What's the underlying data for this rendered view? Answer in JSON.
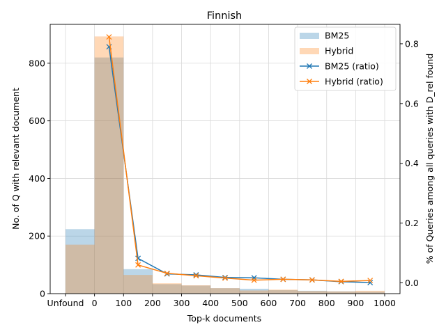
{
  "chart_data": {
    "type": "bar",
    "title": "Finnish",
    "xlabel": "Top-k documents",
    "ylabel_left": "No. of Q with relevant document",
    "ylabel_right": "% of Queries among all queries with D_rel found",
    "x_tick_labels": [
      "Unfound",
      "0",
      "100",
      "200",
      "300",
      "400",
      "500",
      "600",
      "700",
      "800",
      "900",
      "1000"
    ],
    "left_ticks": [
      0,
      200,
      400,
      600,
      800
    ],
    "right_ticks": [
      0.0,
      0.2,
      0.4,
      0.6,
      0.8
    ],
    "left_ylim": [
      0,
      935
    ],
    "right_ylim": [
      -0.036,
      0.865
    ],
    "grid": true,
    "legend_position": "top-right",
    "bins": [
      "Unfound",
      "0-100",
      "100-200",
      "200-300",
      "300-400",
      "400-500",
      "500-600",
      "600-700",
      "700-800",
      "800-900",
      "900-1000"
    ],
    "bar_series": [
      {
        "name": "BM25",
        "color": "#1f77b4",
        "values": [
          224,
          820,
          85,
          33,
          28,
          19,
          17,
          12,
          10,
          8,
          7
        ]
      },
      {
        "name": "Hybrid",
        "color": "#ff7f0e",
        "values": [
          170,
          893,
          65,
          36,
          29,
          19,
          11,
          14,
          9,
          8,
          10
        ]
      }
    ],
    "line_series": [
      {
        "name": "BM25 (ratio)",
        "color": "#1f77b4",
        "marker": "x",
        "x": [
          50,
          150,
          250,
          350,
          450,
          550,
          650,
          750,
          850,
          950
        ],
        "values": [
          0.79,
          0.082,
          0.03,
          0.027,
          0.018,
          0.017,
          0.012,
          0.01,
          0.004,
          0.001
        ]
      },
      {
        "name": "Hybrid (ratio)",
        "color": "#ff7f0e",
        "marker": "x",
        "x": [
          50,
          150,
          250,
          350,
          450,
          550,
          650,
          750,
          850,
          950
        ],
        "values": [
          0.823,
          0.06,
          0.032,
          0.024,
          0.016,
          0.009,
          0.012,
          0.01,
          0.005,
          0.008
        ]
      }
    ]
  }
}
